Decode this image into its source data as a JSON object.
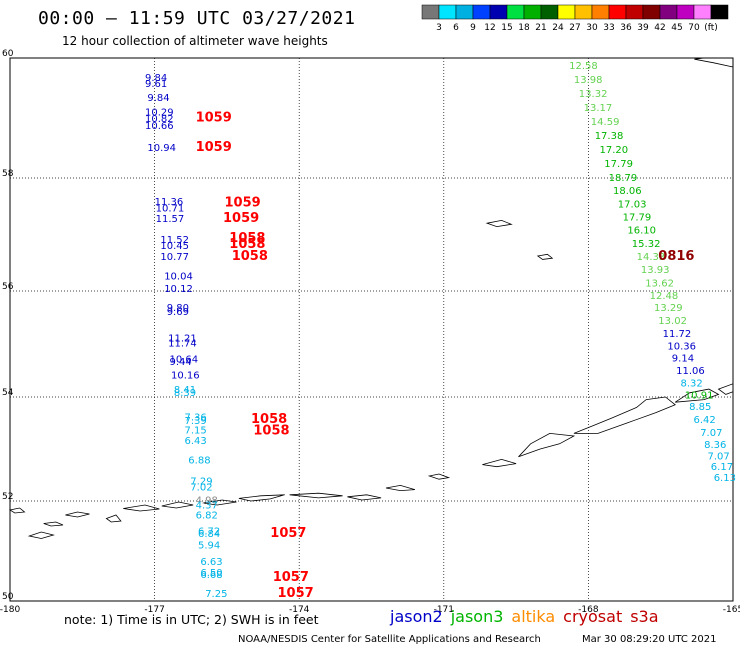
{
  "header": {
    "title": "00:00 – 11:59 UTC 03/27/2021",
    "subtitle": "12 hour collection of altimeter wave heights"
  },
  "colorbar": {
    "colors": [
      "#777777",
      "#00e5ff",
      "#00b0e0",
      "#0040ff",
      "#0000b0",
      "#00e040",
      "#00b000",
      "#006000",
      "#ffff00",
      "#ffc000",
      "#ff8000",
      "#ff0000",
      "#c00000",
      "#800000",
      "#800080",
      "#c000c0",
      "#ff80ff",
      "#000000"
    ],
    "labels": [
      "3",
      "6",
      "9",
      "12",
      "15",
      "18",
      "21",
      "24",
      "27",
      "30",
      "33",
      "36",
      "39",
      "42",
      "45",
      "70",
      "(ft)"
    ]
  },
  "map": {
    "lon_range": [
      -180,
      -165
    ],
    "lat_range": [
      50,
      60
    ],
    "lon_ticks": [
      "-180",
      "-177",
      "-174",
      "-171",
      "-168",
      "-165"
    ],
    "lat_ticks": [
      "60",
      "58",
      "56",
      "54",
      "52",
      "50"
    ],
    "colors": {
      "jason2": "#0000c8",
      "jason3": "#00b400",
      "jason3_light": "#64d250",
      "altika": "#ff8c00",
      "cryosat": "#ff0000",
      "cryosat_dark": "#900000",
      "s3a": "#ff0000",
      "cyan": "#00b4e6",
      "gray": "#888888"
    },
    "wave_heights": [
      {
        "lon": -177.2,
        "lat": 59.62,
        "text": "9.84",
        "c": "jason2"
      },
      {
        "lon": -177.2,
        "lat": 59.52,
        "text": "9.61",
        "c": "jason2"
      },
      {
        "lon": -177.15,
        "lat": 59.28,
        "text": "9.84",
        "c": "jason2"
      },
      {
        "lon": -177.2,
        "lat": 59.04,
        "text": "10.29",
        "c": "jason2"
      },
      {
        "lon": -177.2,
        "lat": 58.93,
        "text": "10.82",
        "c": "jason2"
      },
      {
        "lon": -177.2,
        "lat": 58.82,
        "text": "10.66",
        "c": "jason2"
      },
      {
        "lon": -177.15,
        "lat": 58.45,
        "text": "10.94",
        "c": "jason2"
      },
      {
        "lon": -177.0,
        "lat": 57.52,
        "text": "11.36",
        "c": "jason2"
      },
      {
        "lon": -176.98,
        "lat": 57.41,
        "text": "10.71",
        "c": "jason2"
      },
      {
        "lon": -176.98,
        "lat": 57.22,
        "text": "11.57",
        "c": "jason2"
      },
      {
        "lon": -176.88,
        "lat": 56.85,
        "text": "11.52",
        "c": "jason2"
      },
      {
        "lon": -176.88,
        "lat": 56.74,
        "text": "10.45",
        "c": "jason2"
      },
      {
        "lon": -176.88,
        "lat": 56.55,
        "text": "10.77",
        "c": "jason2"
      },
      {
        "lon": -176.8,
        "lat": 56.2,
        "text": "10.04",
        "c": "jason2"
      },
      {
        "lon": -176.8,
        "lat": 55.98,
        "text": "10.12",
        "c": "jason2"
      },
      {
        "lon": -176.75,
        "lat": 55.62,
        "text": "9.80",
        "c": "jason2"
      },
      {
        "lon": -176.75,
        "lat": 55.55,
        "text": "9.69",
        "c": "jason2"
      },
      {
        "lon": -176.72,
        "lat": 55.05,
        "text": "11.21",
        "c": "jason2"
      },
      {
        "lon": -176.72,
        "lat": 54.95,
        "text": "11.74",
        "c": "jason2"
      },
      {
        "lon": -176.69,
        "lat": 54.65,
        "text": "10.64",
        "c": "jason2"
      },
      {
        "lon": -176.69,
        "lat": 54.6,
        "text": "9.44",
        "c": "jason2"
      },
      {
        "lon": -176.66,
        "lat": 54.35,
        "text": "10.16",
        "c": "jason2"
      },
      {
        "lon": -176.6,
        "lat": 54.08,
        "text": "8.41",
        "c": "cyan"
      },
      {
        "lon": -176.6,
        "lat": 54.02,
        "text": "8.39",
        "c": "cyan"
      },
      {
        "lon": -176.38,
        "lat": 53.55,
        "text": "7.36",
        "c": "cyan"
      },
      {
        "lon": -176.38,
        "lat": 53.48,
        "text": "7.39",
        "c": "cyan"
      },
      {
        "lon": -176.38,
        "lat": 53.3,
        "text": "7.15",
        "c": "cyan"
      },
      {
        "lon": -176.38,
        "lat": 53.1,
        "text": "6.43",
        "c": "cyan"
      },
      {
        "lon": -176.3,
        "lat": 52.72,
        "text": "6.88",
        "c": "cyan"
      },
      {
        "lon": -176.26,
        "lat": 52.32,
        "text": "7.29",
        "c": "cyan"
      },
      {
        "lon": -176.26,
        "lat": 52.2,
        "text": "7.02",
        "c": "cyan"
      },
      {
        "lon": -176.15,
        "lat": 51.95,
        "text": "4.98",
        "c": "gray"
      },
      {
        "lon": -176.15,
        "lat": 51.85,
        "text": "4.37",
        "c": "cyan"
      },
      {
        "lon": -176.15,
        "lat": 51.65,
        "text": "6.82",
        "c": "cyan"
      },
      {
        "lon": -176.1,
        "lat": 51.33,
        "text": "6.72",
        "c": "cyan"
      },
      {
        "lon": -176.1,
        "lat": 51.28,
        "text": "6.84",
        "c": "cyan"
      },
      {
        "lon": -176.1,
        "lat": 51.05,
        "text": "5.94",
        "c": "cyan"
      },
      {
        "lon": -176.05,
        "lat": 50.72,
        "text": "6.63",
        "c": "cyan"
      },
      {
        "lon": -176.05,
        "lat": 50.5,
        "text": "6.50",
        "c": "cyan"
      },
      {
        "lon": -176.05,
        "lat": 50.46,
        "text": "6.68",
        "c": "cyan"
      },
      {
        "lon": -175.95,
        "lat": 50.08,
        "text": "7.25",
        "c": "cyan"
      },
      {
        "lon": -168.4,
        "lat": 59.82,
        "text": "12.58",
        "c": "jason3_light"
      },
      {
        "lon": -168.3,
        "lat": 59.58,
        "text": "13.98",
        "c": "jason3_light"
      },
      {
        "lon": -168.2,
        "lat": 59.35,
        "text": "13.32",
        "c": "jason3_light"
      },
      {
        "lon": -168.1,
        "lat": 59.12,
        "text": "13.17",
        "c": "jason3_light"
      },
      {
        "lon": -167.95,
        "lat": 58.88,
        "text": "14.59",
        "c": "jason3_light"
      },
      {
        "lon": -167.87,
        "lat": 58.65,
        "text": "17.38",
        "c": "jason3"
      },
      {
        "lon": -167.77,
        "lat": 58.42,
        "text": "17.20",
        "c": "jason3"
      },
      {
        "lon": -167.67,
        "lat": 58.18,
        "text": "17.79",
        "c": "jason3"
      },
      {
        "lon": -167.58,
        "lat": 57.95,
        "text": "18.79",
        "c": "jason3"
      },
      {
        "lon": -167.49,
        "lat": 57.72,
        "text": "18.06",
        "c": "jason3"
      },
      {
        "lon": -167.39,
        "lat": 57.48,
        "text": "17.03",
        "c": "jason3"
      },
      {
        "lon": -167.29,
        "lat": 57.25,
        "text": "17.79",
        "c": "jason3"
      },
      {
        "lon": -167.19,
        "lat": 57.02,
        "text": "16.10",
        "c": "jason3"
      },
      {
        "lon": -167.1,
        "lat": 56.78,
        "text": "15.32",
        "c": "jason3"
      },
      {
        "lon": -167.0,
        "lat": 56.55,
        "text": "14.33",
        "c": "jason3_light"
      },
      {
        "lon": -166.91,
        "lat": 56.32,
        "text": "13.93",
        "c": "jason3_light"
      },
      {
        "lon": -166.82,
        "lat": 56.08,
        "text": "13.62",
        "c": "jason3_light"
      },
      {
        "lon": -166.73,
        "lat": 55.85,
        "text": "12.48",
        "c": "jason3_light"
      },
      {
        "lon": -166.64,
        "lat": 55.62,
        "text": "13.29",
        "c": "jason3_light"
      },
      {
        "lon": -166.55,
        "lat": 55.38,
        "text": "13.02",
        "c": "jason3_light"
      },
      {
        "lon": -166.46,
        "lat": 55.13,
        "text": "11.72",
        "c": "jason2"
      },
      {
        "lon": -166.36,
        "lat": 54.9,
        "text": "10.36",
        "c": "jason2"
      },
      {
        "lon": -166.27,
        "lat": 54.67,
        "text": "9.14",
        "c": "jason2"
      },
      {
        "lon": -166.18,
        "lat": 54.43,
        "text": "11.06",
        "c": "jason2"
      },
      {
        "lon": -166.09,
        "lat": 54.2,
        "text": "8.32",
        "c": "cyan"
      },
      {
        "lon": -166.0,
        "lat": 53.97,
        "text": "10.91",
        "c": "jason3"
      },
      {
        "lon": -165.91,
        "lat": 53.75,
        "text": "8.85",
        "c": "cyan"
      },
      {
        "lon": -165.82,
        "lat": 53.5,
        "text": "6.42",
        "c": "cyan"
      },
      {
        "lon": -165.68,
        "lat": 53.25,
        "text": "7.07",
        "c": "cyan"
      },
      {
        "lon": -165.6,
        "lat": 53.02,
        "text": "8.36",
        "c": "cyan"
      },
      {
        "lon": -165.53,
        "lat": 52.8,
        "text": "7.07",
        "c": "cyan"
      },
      {
        "lon": -165.46,
        "lat": 52.6,
        "text": "6.17",
        "c": "cyan"
      },
      {
        "lon": -165.4,
        "lat": 52.38,
        "text": "6.13",
        "c": "cyan"
      }
    ],
    "track_times": [
      {
        "lon": -176.15,
        "lat": 58.94,
        "text": "1059",
        "c": "cryosat"
      },
      {
        "lon": -176.15,
        "lat": 58.45,
        "text": "1059",
        "c": "cryosat"
      },
      {
        "lon": -175.55,
        "lat": 57.5,
        "text": "1059",
        "c": "cryosat"
      },
      {
        "lon": -175.58,
        "lat": 57.22,
        "text": "1059",
        "c": "cryosat"
      },
      {
        "lon": -175.45,
        "lat": 56.87,
        "text": "1058",
        "c": "cryosat"
      },
      {
        "lon": -175.45,
        "lat": 56.76,
        "text": "1058",
        "c": "cryosat"
      },
      {
        "lon": -175.4,
        "lat": 56.55,
        "text": "1058",
        "c": "cryosat"
      },
      {
        "lon": -175.0,
        "lat": 53.5,
        "text": "1058",
        "c": "cryosat"
      },
      {
        "lon": -174.95,
        "lat": 53.28,
        "text": "1058",
        "c": "cryosat"
      },
      {
        "lon": -174.6,
        "lat": 51.28,
        "text": "1057",
        "c": "cryosat"
      },
      {
        "lon": -174.55,
        "lat": 50.4,
        "text": "1057",
        "c": "cryosat"
      },
      {
        "lon": -174.45,
        "lat": 50.08,
        "text": "1057",
        "c": "cryosat"
      },
      {
        "lon": -166.55,
        "lat": 56.55,
        "text": "0816",
        "c": "cryosat_dark"
      }
    ],
    "islands": [
      {
        "poly": [
          [
            -178.85,
            51.72
          ],
          [
            -178.6,
            51.78
          ],
          [
            -178.35,
            51.74
          ],
          [
            -178.6,
            51.68
          ]
        ]
      },
      {
        "poly": [
          [
            -179.3,
            51.55
          ],
          [
            -179.05,
            51.58
          ],
          [
            -178.9,
            51.52
          ],
          [
            -179.15,
            51.5
          ]
        ]
      },
      {
        "poly": [
          [
            -179.6,
            51.3
          ],
          [
            -179.35,
            51.38
          ],
          [
            -179.1,
            51.32
          ],
          [
            -179.35,
            51.25
          ]
        ]
      },
      {
        "poly": [
          [
            -180.0,
            51.82
          ],
          [
            -179.8,
            51.86
          ],
          [
            -179.7,
            51.78
          ],
          [
            -179.9,
            51.76
          ]
        ]
      },
      {
        "poly": [
          [
            -178.0,
            51.65
          ],
          [
            -177.8,
            51.72
          ],
          [
            -177.7,
            51.6
          ],
          [
            -177.9,
            51.58
          ]
        ]
      },
      {
        "poly": [
          [
            -177.65,
            51.85
          ],
          [
            -177.2,
            51.92
          ],
          [
            -176.9,
            51.84
          ],
          [
            -177.3,
            51.8
          ]
        ]
      },
      {
        "poly": [
          [
            -176.85,
            51.9
          ],
          [
            -176.5,
            51.98
          ],
          [
            -176.2,
            51.92
          ],
          [
            -176.55,
            51.86
          ]
        ]
      },
      {
        "poly": [
          [
            -176.0,
            51.96
          ],
          [
            -175.6,
            52.02
          ],
          [
            -175.3,
            51.98
          ],
          [
            -175.7,
            51.92
          ]
        ]
      },
      {
        "poly": [
          [
            -175.25,
            52.05
          ],
          [
            -174.8,
            52.1
          ],
          [
            -174.3,
            52.12
          ],
          [
            -174.6,
            52.04
          ],
          [
            -175.0,
            52.0
          ]
        ]
      },
      {
        "poly": [
          [
            -174.2,
            52.12
          ],
          [
            -173.6,
            52.15
          ],
          [
            -173.1,
            52.1
          ],
          [
            -173.6,
            52.06
          ]
        ]
      },
      {
        "poly": [
          [
            -173.0,
            52.08
          ],
          [
            -172.6,
            52.12
          ],
          [
            -172.3,
            52.06
          ],
          [
            -172.7,
            52.02
          ]
        ]
      },
      {
        "poly": [
          [
            -172.2,
            52.25
          ],
          [
            -171.9,
            52.3
          ],
          [
            -171.6,
            52.22
          ],
          [
            -171.9,
            52.2
          ]
        ]
      },
      {
        "poly": [
          [
            -171.3,
            52.48
          ],
          [
            -171.1,
            52.52
          ],
          [
            -170.9,
            52.45
          ],
          [
            -171.1,
            52.42
          ]
        ]
      },
      {
        "poly": [
          [
            -170.2,
            52.7
          ],
          [
            -169.8,
            52.8
          ],
          [
            -169.5,
            52.72
          ],
          [
            -169.9,
            52.66
          ]
        ]
      },
      {
        "poly": [
          [
            -169.45,
            52.85
          ],
          [
            -169.0,
            53.0
          ],
          [
            -168.6,
            53.1
          ],
          [
            -168.3,
            53.25
          ],
          [
            -168.8,
            53.3
          ],
          [
            -169.2,
            53.1
          ]
        ]
      },
      {
        "poly": [
          [
            -168.3,
            53.3
          ],
          [
            -167.9,
            53.45
          ],
          [
            -167.5,
            53.6
          ],
          [
            -167.0,
            53.8
          ],
          [
            -166.8,
            53.95
          ],
          [
            -166.4,
            54.0
          ],
          [
            -166.2,
            53.85
          ],
          [
            -166.6,
            53.7
          ],
          [
            -167.2,
            53.5
          ],
          [
            -167.8,
            53.3
          ]
        ]
      },
      {
        "poly": [
          [
            -166.2,
            53.9
          ],
          [
            -165.9,
            54.08
          ],
          [
            -165.5,
            54.15
          ],
          [
            -165.3,
            54.05
          ],
          [
            -165.6,
            53.95
          ]
        ]
      },
      {
        "poly": [
          [
            -165.3,
            54.15
          ],
          [
            -165.0,
            54.25
          ],
          [
            -165.0,
            54.1
          ],
          [
            -165.15,
            54.05
          ]
        ]
      },
      {
        "poly": [
          [
            -170.1,
            57.2
          ],
          [
            -169.8,
            57.25
          ],
          [
            -169.6,
            57.18
          ],
          [
            -169.9,
            57.14
          ]
        ]
      },
      {
        "poly": [
          [
            -169.05,
            56.62
          ],
          [
            -168.85,
            56.65
          ],
          [
            -168.75,
            56.58
          ],
          [
            -168.95,
            56.56
          ]
        ]
      },
      {
        "poly": [
          [
            -165.8,
            59.98
          ],
          [
            -165.4,
            59.92
          ],
          [
            -165.0,
            59.85
          ],
          [
            -165.0,
            60.0
          ],
          [
            -165.6,
            60.0
          ]
        ]
      }
    ]
  },
  "footer": {
    "note": "note:  1) Time is in UTC;  2) SWH is in feet",
    "legend": [
      {
        "name": "jason2",
        "color": "#0000c8"
      },
      {
        "name": "jason3",
        "color": "#00b400"
      },
      {
        "name": "altika",
        "color": "#ff8c00"
      },
      {
        "name": "cryosat",
        "color": "#c00000"
      },
      {
        "name": "s3a",
        "color": "#c00000"
      }
    ],
    "credit": "NOAA/NESDIS Center for Satellite Applications and Research",
    "timestamp": "Mar 30 08:29:20 UTC 2021"
  }
}
